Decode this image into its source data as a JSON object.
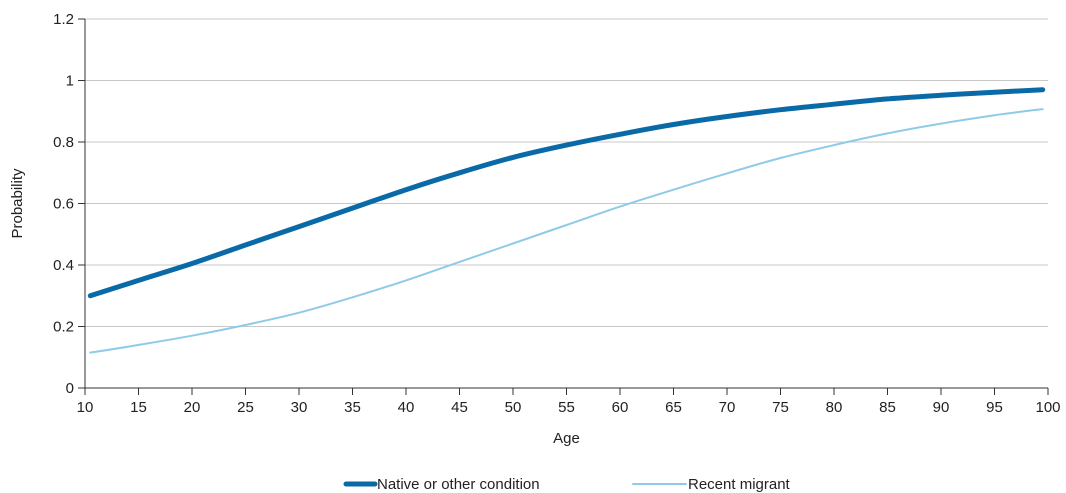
{
  "chart_data": {
    "type": "line",
    "title": "",
    "xlabel": "Age",
    "ylabel": "Probability",
    "xlim": [
      10,
      100
    ],
    "ylim": [
      0,
      1.2
    ],
    "x_ticks": [
      "10",
      "15",
      "20",
      "25",
      "30",
      "35",
      "40",
      "45",
      "50",
      "55",
      "60",
      "65",
      "70",
      "75",
      "80",
      "85",
      "90",
      "95",
      "100"
    ],
    "y_ticks": [
      "0",
      "0.2",
      "0.4",
      "0.6",
      "0.8",
      "1",
      "1.2"
    ],
    "grid": "horizontal",
    "legend_position": "bottom",
    "series": [
      {
        "name": "Native or other condition",
        "color": "#0a6aa8",
        "x": [
          10.5,
          15,
          20,
          25,
          30,
          35,
          40,
          45,
          50,
          55,
          60,
          65,
          70,
          75,
          80,
          85,
          90,
          95,
          99.5
        ],
        "y": [
          0.3,
          0.35,
          0.405,
          0.465,
          0.525,
          0.585,
          0.645,
          0.7,
          0.75,
          0.79,
          0.825,
          0.857,
          0.883,
          0.905,
          0.923,
          0.94,
          0.952,
          0.962,
          0.97
        ]
      },
      {
        "name": "Recent migrant",
        "color": "#8fcbe8",
        "x": [
          10.5,
          15,
          20,
          25,
          30,
          35,
          40,
          45,
          50,
          55,
          60,
          65,
          70,
          75,
          80,
          85,
          90,
          95,
          99.5
        ],
        "y": [
          0.115,
          0.14,
          0.17,
          0.205,
          0.245,
          0.295,
          0.35,
          0.41,
          0.47,
          0.53,
          0.59,
          0.645,
          0.698,
          0.748,
          0.79,
          0.828,
          0.86,
          0.887,
          0.907
        ]
      }
    ]
  }
}
